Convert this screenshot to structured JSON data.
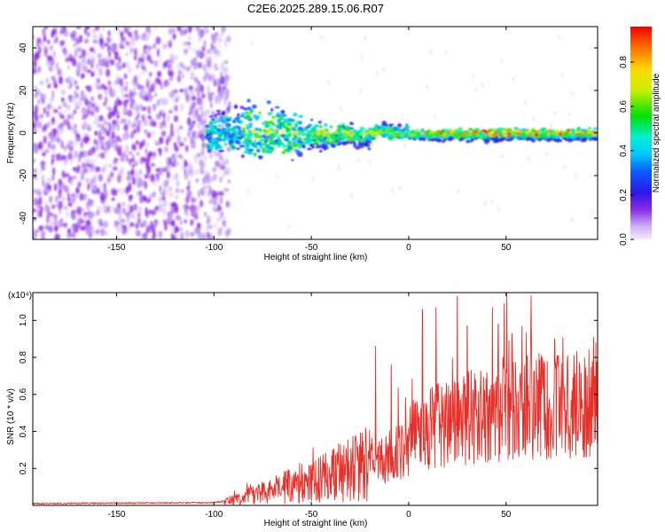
{
  "title": "C2E6.2025.289.15.06.R07",
  "colors": {
    "snr_line": "#e8302a",
    "spectrogram_base": "#8a2be2"
  },
  "chart_data": [
    {
      "type": "heatmap",
      "name": "spectrogram",
      "title": "C2E6.2025.289.15.06.R07",
      "xlabel": "Height of straight line (km)",
      "ylabel": "Frequency (Hz)",
      "xlim": [
        -193,
        97
      ],
      "ylim": [
        -50,
        50
      ],
      "x_ticks": [
        -150,
        -100,
        -50,
        0,
        50
      ],
      "y_ticks": [
        -40,
        -20,
        0,
        20,
        40
      ],
      "colorbar": {
        "label": "Normalized spectral amplitude",
        "range": [
          0.0,
          0.96
        ],
        "ticks": [
          0.0,
          0.2,
          0.4,
          0.6,
          0.8
        ],
        "tick_labels": [
          "0.0",
          "0.2",
          "0.4",
          "0.6",
          "0.8"
        ],
        "colormap": "rainbow"
      },
      "features": [
        {
          "description": "broadband noise region",
          "x_range": [
            -193,
            -100
          ],
          "y_range": [
            -50,
            50
          ],
          "amplitude": 0.1
        },
        {
          "description": "signal band near 0 Hz",
          "x_range": [
            -100,
            97
          ],
          "frequency": 0,
          "bandwidth_hz": 10,
          "amplitude_range": [
            0.2,
            0.96
          ]
        }
      ]
    },
    {
      "type": "line",
      "name": "snr",
      "xlabel": "Height of straight line (km)",
      "ylabel": "SNR (10 * v/v)",
      "scale_label": "(x10⁴)",
      "xlim": [
        -193,
        97
      ],
      "ylim": [
        0,
        1.15
      ],
      "x_ticks": [
        -150,
        -100,
        -50,
        0,
        50
      ],
      "y_ticks": [
        0.2,
        0.4,
        0.6,
        0.8,
        1.0
      ],
      "series": [
        {
          "name": "SNR",
          "color": "#e8302a",
          "trend": [
            {
              "x": -193,
              "y": 0.01
            },
            {
              "x": -100,
              "y": 0.015
            },
            {
              "x": -90,
              "y": 0.03
            },
            {
              "x": -70,
              "y": 0.08
            },
            {
              "x": -50,
              "y": 0.14
            },
            {
              "x": -30,
              "y": 0.2
            },
            {
              "x": -10,
              "y": 0.26
            },
            {
              "x": 0,
              "y": 0.35
            },
            {
              "x": 20,
              "y": 0.46
            },
            {
              "x": 50,
              "y": 0.52
            },
            {
              "x": 97,
              "y": 0.58
            }
          ],
          "peaks": [
            {
              "x": -83,
              "y": 0.12
            },
            {
              "x": -17,
              "y": 0.86
            },
            {
              "x": -9,
              "y": 0.76
            },
            {
              "x": 7,
              "y": 1.06
            },
            {
              "x": 14,
              "y": 1.07
            },
            {
              "x": 25,
              "y": 1.13
            },
            {
              "x": 30,
              "y": 0.97
            },
            {
              "x": 46,
              "y": 0.98
            },
            {
              "x": 49,
              "y": 1.09
            },
            {
              "x": 53,
              "y": 0.93
            },
            {
              "x": 75,
              "y": 0.9
            },
            {
              "x": 95,
              "y": 0.91
            }
          ]
        }
      ]
    }
  ]
}
